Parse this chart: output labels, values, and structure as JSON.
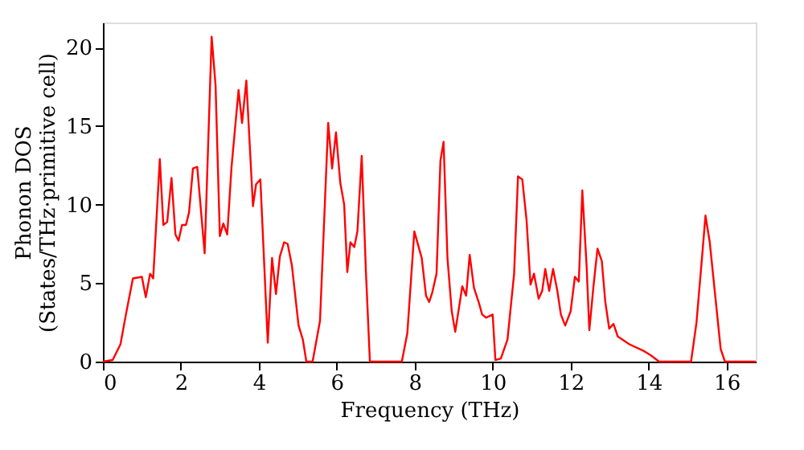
{
  "chart_data": {
    "type": "line",
    "xlabel": "Frequency (THz)",
    "ylabel": "Phonon DOS\n(States/THz·primitive cell)",
    "xlim": [
      0,
      16.75
    ],
    "ylim": [
      0,
      21.6
    ],
    "xticks": [
      0,
      2,
      4,
      6,
      8,
      10,
      12,
      14,
      16
    ],
    "yticks": [
      0,
      5,
      10,
      15,
      20
    ],
    "grid": false,
    "line_style": "solid",
    "marker": "none",
    "x": [
      0,
      0.25,
      0.45,
      0.59,
      0.77,
      1.0,
      1.1,
      1.21,
      1.29,
      1.46,
      1.55,
      1.65,
      1.76,
      1.86,
      1.94,
      2.03,
      2.13,
      2.21,
      2.31,
      2.42,
      2.61,
      2.79,
      2.89,
      3.0,
      3.09,
      3.19,
      3.3,
      3.48,
      3.57,
      3.68,
      3.85,
      3.93,
      4.04,
      4.23,
      4.34,
      4.44,
      4.54,
      4.65,
      4.74,
      4.85,
      5.02,
      5.13,
      5.22,
      5.38,
      5.57,
      5.78,
      5.88,
      5.98,
      6.09,
      6.19,
      6.27,
      6.35,
      6.45,
      6.53,
      6.64,
      6.75,
      6.85,
      7.67,
      7.81,
      7.99,
      8.18,
      8.29,
      8.37,
      8.45,
      8.56,
      8.66,
      8.74,
      8.84,
      8.95,
      9.04,
      9.14,
      9.22,
      9.32,
      9.41,
      9.52,
      9.64,
      9.73,
      9.83,
      10.0,
      10.07,
      10.21,
      10.38,
      10.55,
      10.65,
      10.76,
      10.87,
      10.97,
      11.06,
      11.18,
      11.27,
      11.35,
      11.45,
      11.55,
      11.66,
      11.75,
      11.86,
      12.0,
      12.11,
      12.21,
      12.3,
      12.41,
      12.48,
      12.59,
      12.69,
      12.8,
      12.89,
      12.99,
      13.1,
      13.21,
      13.51,
      13.86,
      14.06,
      14.27,
      15.09,
      15.23,
      15.37,
      15.46,
      15.57,
      15.71,
      15.85,
      15.96,
      16.75
    ],
    "series": [
      {
        "color": "#ff0000",
        "values": [
          0,
          0.1,
          1.1,
          3.0,
          5.3,
          5.4,
          4.1,
          5.6,
          5.3,
          12.9,
          8.7,
          8.9,
          11.7,
          8.1,
          7.7,
          8.7,
          8.7,
          9.5,
          12.3,
          12.4,
          6.9,
          20.7,
          17.6,
          8.0,
          8.8,
          8.1,
          12.4,
          17.3,
          15.2,
          17.9,
          9.9,
          11.3,
          11.6,
          1.2,
          6.6,
          4.3,
          6.7,
          7.6,
          7.5,
          6.1,
          2.3,
          1.4,
          0,
          0,
          2.6,
          15.2,
          12.3,
          14.6,
          11.4,
          10.0,
          5.7,
          7.6,
          7.3,
          8.3,
          13.1,
          5.6,
          0,
          0,
          1.8,
          8.3,
          6.6,
          4.2,
          3.8,
          4.4,
          5.6,
          12.8,
          14.0,
          6.6,
          3.2,
          1.9,
          3.5,
          4.8,
          4.2,
          6.8,
          4.7,
          3.8,
          3.0,
          2.8,
          3.0,
          0.1,
          0.2,
          1.4,
          5.6,
          11.8,
          11.6,
          9.0,
          4.9,
          5.6,
          4.0,
          4.5,
          5.9,
          4.5,
          5.9,
          4.5,
          3.0,
          2.3,
          3.2,
          5.4,
          5.1,
          10.9,
          6.1,
          2.0,
          4.9,
          7.2,
          6.4,
          3.8,
          2.1,
          2.4,
          1.6,
          1.1,
          0.7,
          0.4,
          0,
          0,
          2.5,
          6.6,
          9.3,
          7.6,
          4.2,
          0.8,
          0,
          0
        ]
      }
    ]
  }
}
